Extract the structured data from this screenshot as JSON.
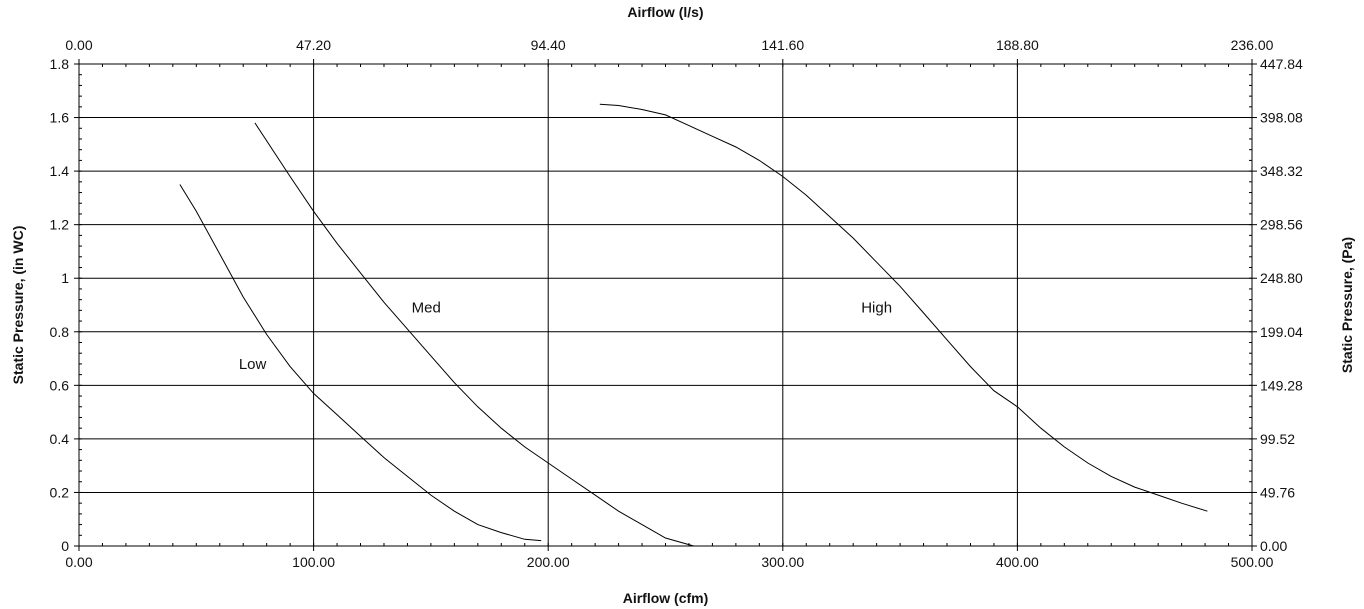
{
  "chart_data": {
    "type": "line",
    "title": "",
    "xlabel": "Airflow (cfm)",
    "x2label": "Airflow (l/s)",
    "ylabel": "Static Pressure, (in WC)",
    "y2label": "Static Pressure, (Pa)",
    "xlim": [
      0,
      500
    ],
    "ylim": [
      0,
      1.8
    ],
    "grid": true,
    "x_ticks": [
      {
        "value": 0,
        "label": "0.00"
      },
      {
        "value": 100,
        "label": "100.00"
      },
      {
        "value": 200,
        "label": "200.00"
      },
      {
        "value": 300,
        "label": "300.00"
      },
      {
        "value": 400,
        "label": "400.00"
      },
      {
        "value": 500,
        "label": "500.00"
      }
    ],
    "x2_ticks": [
      {
        "value": 0,
        "label": "0.00"
      },
      {
        "value": 47.2,
        "label": "47.20"
      },
      {
        "value": 94.4,
        "label": "94.40"
      },
      {
        "value": 141.6,
        "label": "141.60"
      },
      {
        "value": 188.8,
        "label": "188.80"
      },
      {
        "value": 236,
        "label": "236.00"
      }
    ],
    "y_ticks": [
      {
        "value": 0,
        "label": "0"
      },
      {
        "value": 0.2,
        "label": "0.2"
      },
      {
        "value": 0.4,
        "label": "0.4"
      },
      {
        "value": 0.6,
        "label": "0.6"
      },
      {
        "value": 0.8,
        "label": "0.8"
      },
      {
        "value": 1.0,
        "label": "1"
      },
      {
        "value": 1.2,
        "label": "1.2"
      },
      {
        "value": 1.4,
        "label": "1.4"
      },
      {
        "value": 1.6,
        "label": "1.6"
      },
      {
        "value": 1.8,
        "label": "1.8"
      }
    ],
    "y2_ticks": [
      {
        "value": 0,
        "label": "0.00"
      },
      {
        "value": 49.76,
        "label": "49.76"
      },
      {
        "value": 99.52,
        "label": "99.52"
      },
      {
        "value": 149.28,
        "label": "149.28"
      },
      {
        "value": 199.04,
        "label": "199.04"
      },
      {
        "value": 248.8,
        "label": "248.80"
      },
      {
        "value": 298.56,
        "label": "298.56"
      },
      {
        "value": 348.32,
        "label": "348.32"
      },
      {
        "value": 398.08,
        "label": "398.08"
      },
      {
        "value": 447.84,
        "label": "447.84"
      }
    ],
    "series": [
      {
        "name": "Low",
        "label_at": [
          74,
          0.68
        ],
        "x": [
          43,
          50,
          60,
          70,
          80,
          90,
          100,
          110,
          120,
          130,
          140,
          150,
          160,
          170,
          180,
          190,
          197
        ],
        "y": [
          1.35,
          1.25,
          1.09,
          0.93,
          0.79,
          0.67,
          0.57,
          0.49,
          0.41,
          0.33,
          0.26,
          0.19,
          0.13,
          0.08,
          0.05,
          0.025,
          0.02
        ]
      },
      {
        "name": "Med",
        "label_at": [
          148,
          0.89
        ],
        "x": [
          75,
          90,
          100,
          110,
          120,
          130,
          140,
          150,
          160,
          170,
          180,
          190,
          200,
          210,
          220,
          230,
          240,
          250,
          262
        ],
        "y": [
          1.58,
          1.38,
          1.25,
          1.13,
          1.02,
          0.91,
          0.81,
          0.71,
          0.61,
          0.52,
          0.44,
          0.37,
          0.31,
          0.25,
          0.19,
          0.13,
          0.08,
          0.03,
          0.0
        ]
      },
      {
        "name": "High",
        "label_at": [
          340,
          0.89
        ],
        "x": [
          222,
          230,
          240,
          250,
          260,
          270,
          280,
          290,
          300,
          310,
          320,
          330,
          340,
          350,
          360,
          370,
          380,
          390,
          400,
          410,
          420,
          430,
          440,
          450,
          460,
          470,
          481
        ],
        "y": [
          1.65,
          1.645,
          1.63,
          1.61,
          1.57,
          1.53,
          1.49,
          1.44,
          1.38,
          1.31,
          1.23,
          1.15,
          1.06,
          0.97,
          0.87,
          0.77,
          0.67,
          0.58,
          0.52,
          0.44,
          0.37,
          0.31,
          0.26,
          0.22,
          0.19,
          0.16,
          0.13
        ]
      }
    ]
  }
}
